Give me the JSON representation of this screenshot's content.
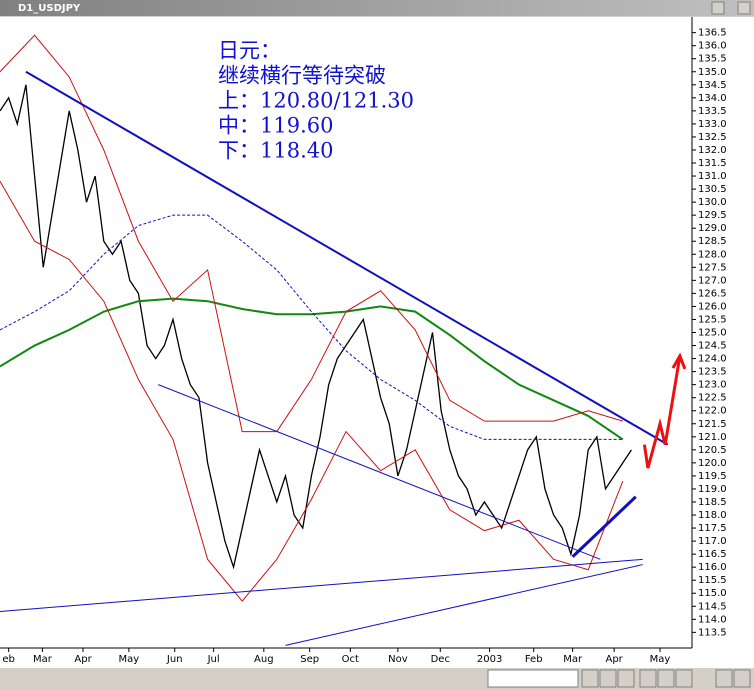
{
  "window_title": "D1_USDJPY",
  "chart_data": {
    "type": "line",
    "annotation_text": [
      "日元：",
      "继续横行等待突破",
      "上：120.80/121.30",
      "中：119.60",
      "下：118.40"
    ],
    "xlim": [
      0,
      80
    ],
    "ylim": [
      112.9,
      137.1
    ],
    "xticks": [
      {
        "value": 1,
        "label": "eb"
      },
      {
        "value": 4.9,
        "label": "Mar"
      },
      {
        "value": 9.6,
        "label": "Apr"
      },
      {
        "value": 14.9,
        "label": "May"
      },
      {
        "value": 20.2,
        "label": "Jun"
      },
      {
        "value": 24.7,
        "label": "Jul"
      },
      {
        "value": 30.5,
        "label": "Aug"
      },
      {
        "value": 35.8,
        "label": "Sep"
      },
      {
        "value": 40.5,
        "label": "Oct"
      },
      {
        "value": 46,
        "label": "Nov"
      },
      {
        "value": 50.9,
        "label": "Dec"
      },
      {
        "value": 56.6,
        "label": "2003"
      },
      {
        "value": 61.7,
        "label": "Feb"
      },
      {
        "value": 66.2,
        "label": "Mar"
      },
      {
        "value": 71,
        "label": "Apr"
      },
      {
        "value": 76.3,
        "label": "May"
      }
    ],
    "yticks": [
      113.5,
      {
        "value": 114,
        "label": "114.0"
      },
      114.5,
      {
        "value": 115,
        "label": "115.0"
      },
      115.5,
      {
        "value": 116,
        "label": "116.0"
      },
      116.5,
      {
        "value": 117,
        "label": "117.0"
      },
      117.5,
      {
        "value": 118,
        "label": "118.0"
      },
      118.5,
      {
        "value": 119,
        "label": "119.0"
      },
      119.5,
      {
        "value": 120,
        "label": "120.0"
      },
      120.5,
      {
        "value": 121,
        "label": "121.0"
      },
      121.5,
      {
        "value": 122,
        "label": "122.0"
      },
      122.5,
      {
        "value": 123,
        "label": "123.0"
      },
      123.5,
      {
        "value": 124,
        "label": "124.0"
      },
      124.5,
      {
        "value": 125,
        "label": "125.0"
      },
      125.5,
      {
        "value": 126,
        "label": "126.0"
      },
      126.5,
      {
        "value": 127,
        "label": "127.0"
      },
      127.5,
      {
        "value": 128,
        "label": "128.0"
      },
      128.5,
      {
        "value": 129,
        "label": "129.0"
      },
      129.5,
      {
        "value": 130,
        "label": "130.0"
      },
      130.5,
      {
        "value": 131,
        "label": "131.0"
      },
      131.5,
      {
        "value": 132,
        "label": "132.0"
      },
      132.5,
      {
        "value": 133,
        "label": "133.0"
      },
      133.5,
      {
        "value": 134,
        "label": "134.0"
      },
      134.5,
      {
        "value": 135,
        "label": "135.0"
      },
      135.5,
      {
        "value": 136,
        "label": "136.0"
      },
      136.5
    ],
    "series": [
      {
        "color": "#000000",
        "width": 1.3,
        "x": [
          0,
          1,
          2,
          3,
          4,
          5,
          6,
          7,
          8,
          9,
          10,
          11,
          12,
          13,
          14,
          15,
          16,
          17,
          18,
          19,
          20,
          21,
          22,
          23,
          24,
          25,
          26,
          27,
          28,
          29,
          30,
          31,
          32,
          33,
          34,
          35,
          36,
          37,
          38,
          39,
          40,
          41,
          42,
          43,
          44,
          45,
          46,
          47,
          48,
          49,
          50,
          51,
          52,
          53,
          54,
          55,
          56,
          57,
          58,
          59,
          60,
          61,
          62,
          63,
          64,
          65,
          66,
          67,
          68,
          69,
          70,
          71,
          72,
          73
        ],
        "values": [
          133.5,
          134,
          133,
          134.5,
          131,
          127.5,
          129.5,
          131.5,
          133.5,
          132,
          130,
          131,
          128.5,
          128,
          128.5,
          127,
          126.5,
          124.5,
          124,
          124.5,
          125.5,
          124,
          123,
          122.5,
          120,
          118.5,
          117,
          116,
          117.5,
          119,
          120.5,
          119.5,
          118.5,
          119.5,
          118,
          117.5,
          119.5,
          121,
          123,
          124,
          124.5,
          125,
          125.5,
          124,
          122.5,
          121.5,
          119.5,
          120.5,
          122,
          123.5,
          125,
          122,
          120.5,
          119.5,
          119,
          118,
          118.5,
          118,
          117.5,
          118.5,
          119.5,
          120.5,
          121,
          119,
          118,
          117.5,
          116.5,
          118,
          120.5,
          121,
          119,
          119.5,
          120,
          120.5
        ]
      },
      {
        "color": "#118811",
        "width": 2,
        "x": [
          0,
          4,
          8,
          12,
          16,
          20,
          24,
          28,
          32,
          36,
          40,
          44,
          48,
          52,
          56,
          60,
          64,
          68,
          72
        ],
        "values": [
          123.7,
          124.5,
          125.1,
          125.8,
          126.2,
          126.3,
          126.2,
          125.9,
          125.7,
          125.7,
          125.8,
          126,
          125.8,
          124.9,
          123.9,
          123,
          122.4,
          121.8,
          120.9
        ]
      },
      {
        "color": "#1010c0",
        "width": 1,
        "dash": true,
        "x": [
          0,
          4,
          8,
          12,
          16,
          20,
          24,
          28,
          32,
          36,
          40,
          44,
          48,
          52,
          56,
          60,
          64,
          68,
          72
        ],
        "values": [
          125.1,
          125.8,
          126.6,
          128,
          129.1,
          129.5,
          129.5,
          128.5,
          127.4,
          125.8,
          124.3,
          123.2,
          122.4,
          121.4,
          120.9,
          120.9,
          120.9,
          120.9,
          120.9
        ]
      },
      {
        "color": "#cc1010",
        "width": 1,
        "x": [
          0,
          4,
          8,
          12,
          16,
          20,
          24,
          28,
          32,
          36,
          40,
          44,
          48,
          52,
          56,
          60,
          64,
          68,
          72
        ],
        "values": [
          135,
          136.4,
          134.8,
          132,
          128.5,
          126.2,
          127.4,
          121.2,
          121.2,
          123.2,
          125.8,
          126.6,
          125.1,
          122.4,
          121.6,
          121.6,
          121.6,
          122,
          121.6
        ]
      },
      {
        "color": "#cc1010",
        "width": 1,
        "x": [
          0,
          4,
          8,
          12,
          16,
          20,
          24,
          28,
          32,
          36,
          40,
          44,
          48,
          52,
          56,
          60,
          64,
          68,
          72
        ],
        "values": [
          130.8,
          128.5,
          127.8,
          126.2,
          123.2,
          120.9,
          116.3,
          114.7,
          116.3,
          118.6,
          121.2,
          119.7,
          120.5,
          118.2,
          117.4,
          117.8,
          116.3,
          115.9,
          119.3
        ]
      }
    ],
    "annotation_lines": [
      {
        "color": "#1010c0",
        "width": 2,
        "x": [
          3,
          77.2
        ],
        "y": [
          135,
          120.7
        ]
      },
      {
        "color": "#1010c0",
        "width": 1,
        "x": [
          18.3,
          69.4
        ],
        "y": [
          123,
          116.3
        ]
      },
      {
        "color": "#1010c0",
        "width": 1,
        "x": [
          0,
          74.3
        ],
        "y": [
          114.3,
          116.3
        ]
      },
      {
        "color": "#1010c0",
        "width": 1,
        "x": [
          33,
          74.3
        ],
        "y": [
          113,
          116.1
        ]
      },
      {
        "color": "#1010c0",
        "width": 3,
        "x": [
          66.2,
          73.5
        ],
        "y": [
          116.4,
          118.7
        ]
      },
      {
        "color": "#ee1010",
        "width": 3,
        "x": [
          74.5,
          74.9,
          76.3,
          76.9,
          78.6
        ],
        "y": [
          120.7,
          119.8,
          121.5,
          120.7,
          124.1
        ]
      }
    ]
  }
}
